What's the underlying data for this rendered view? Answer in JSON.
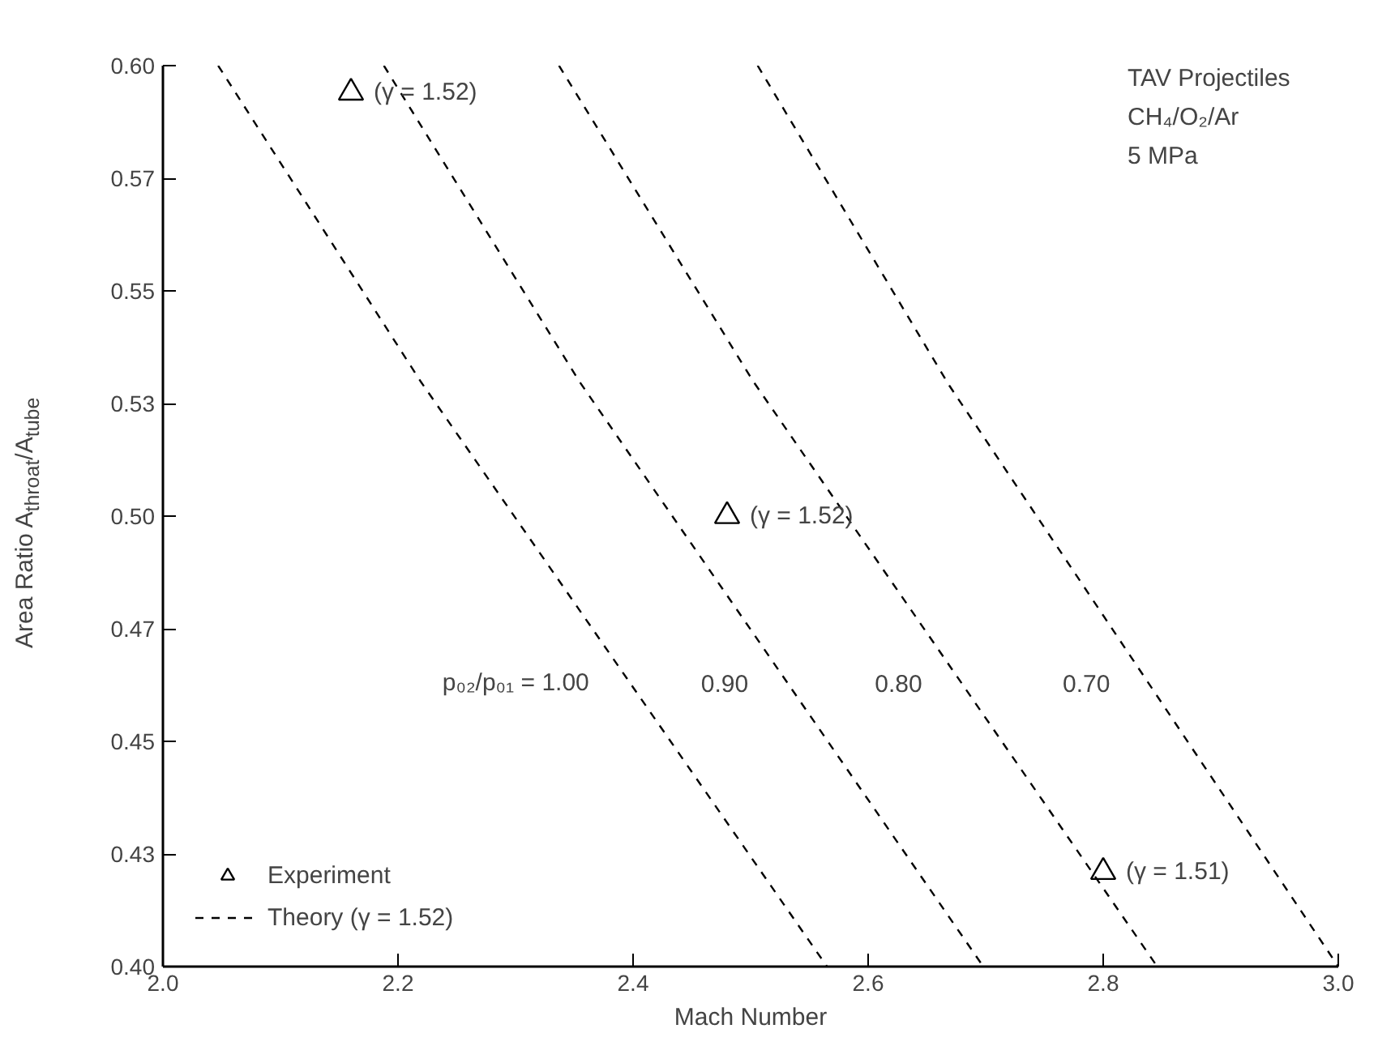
{
  "chart_data": {
    "type": "line",
    "xlabel": "Mach Number",
    "ylabel": "Area Ratio A$_{throat}$/A$_{tube}$",
    "xlim": [
      2.0,
      3.0
    ],
    "ylim": [
      0.4,
      0.6
    ],
    "xticks": [
      {
        "value": 2.0,
        "label": "2.0"
      },
      {
        "value": 2.2,
        "label": "2.2"
      },
      {
        "value": 2.4,
        "label": "2.4"
      },
      {
        "value": 2.6,
        "label": "2.6"
      },
      {
        "value": 2.8,
        "label": "2.8"
      },
      {
        "value": 3.0,
        "label": "3.0"
      }
    ],
    "yticks": [
      {
        "value": 0.4,
        "label": "0.40"
      },
      {
        "value": 0.425,
        "label": "0.43"
      },
      {
        "value": 0.45,
        "label": "0.45"
      },
      {
        "value": 0.475,
        "label": "0.47"
      },
      {
        "value": 0.5,
        "label": "0.50"
      },
      {
        "value": 0.525,
        "label": "0.53"
      },
      {
        "value": 0.55,
        "label": "0.55"
      },
      {
        "value": 0.575,
        "label": "0.57"
      },
      {
        "value": 0.6,
        "label": "0.60"
      }
    ],
    "grid": false,
    "legend": "bottom left",
    "line_style": "dashed",
    "marker": "none",
    "series": [
      {
        "name": "Experiment",
        "type": "scatter",
        "marker": "triangle",
        "color": "#000000",
        "x": [
          2.16,
          2.48,
          2.8
        ],
        "values": [
          0.594,
          0.5,
          0.421
        ]
      },
      {
        "name": "Theory (γ = 1.52)",
        "color": "#000000",
        "x": [
          2.047,
          2.219,
          2.565
        ],
        "values": [
          0.6,
          0.53,
          0.4
        ]
      },
      {
        "color": "#000000",
        "x": [
          2.188,
          2.354,
          2.698
        ],
        "values": [
          0.6,
          0.53,
          0.4
        ]
      },
      {
        "color": "#000000",
        "x": [
          2.337,
          2.502,
          2.846
        ],
        "values": [
          0.6,
          0.53,
          0.4
        ]
      },
      {
        "color": "#000000",
        "x": [
          2.506,
          2.669,
          3.0
        ],
        "values": [
          0.6,
          0.529,
          0.4
        ]
      }
    ],
    "annotations": [
      {
        "text": "(γ = 1.52)",
        "x": 2.16,
        "y": 0.594
      },
      {
        "text": "(γ = 1.52)",
        "x": 2.48,
        "y": 0.5
      },
      {
        "text": "(γ = 1.51)",
        "x": 2.8,
        "y": 0.421
      },
      {
        "text": "p₀₂/p₀₁ = 1.00",
        "x": 2.3957,
        "y": 0.463
      },
      {
        "text": "0.90",
        "x": 2.5312,
        "y": 0.463
      },
      {
        "text": "0.80",
        "x": 2.6791,
        "y": 0.463
      },
      {
        "text": "0.70",
        "x": 2.8389,
        "y": 0.463
      },
      "TAV Projectiles",
      "CH₄/O₂/Ar",
      "5 MPa"
    ]
  }
}
